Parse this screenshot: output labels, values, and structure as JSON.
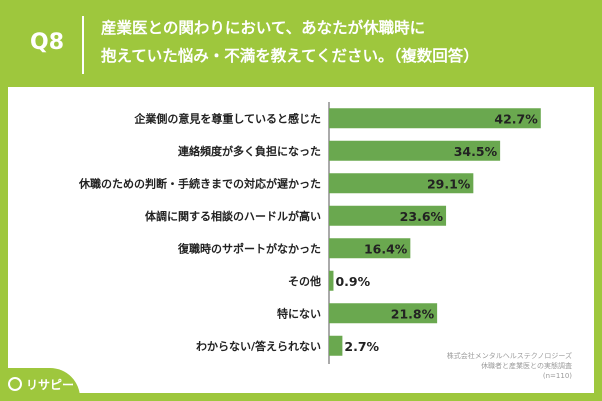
{
  "header": {
    "qnum": "Q8",
    "line1": "産業医との関わりにおいて、あなたが休職時に",
    "line2": "抱えていた悩み・不満を教えてください。（複数回答）"
  },
  "chart_data": {
    "type": "bar",
    "orientation": "horizontal",
    "categories": [
      "企業側の意見を尊重していると感じた",
      "連絡頻度が多く負担になった",
      "休職のための判断・手続きまでの対応が遅かった",
      "体調に関する相談のハードルが高い",
      "復職時のサポートがなかった",
      "その他",
      "特にない",
      "わからない/答えられない"
    ],
    "values": [
      42.7,
      34.5,
      29.1,
      23.6,
      16.4,
      0.9,
      21.8,
      2.7
    ],
    "value_labels": [
      "42.7%",
      "34.5%",
      "29.1%",
      "23.6%",
      "16.4%",
      "0.9%",
      "21.8%",
      "2.7%"
    ],
    "bar_color": "#6aa84f",
    "xlim": [
      0,
      100
    ]
  },
  "footnote": {
    "line1": "株式会社メンタルヘルステクノロジーズ",
    "line2": "休職者と産業医との実態調査",
    "line3": "(n=110)"
  },
  "logo": {
    "text": "リサピー"
  }
}
